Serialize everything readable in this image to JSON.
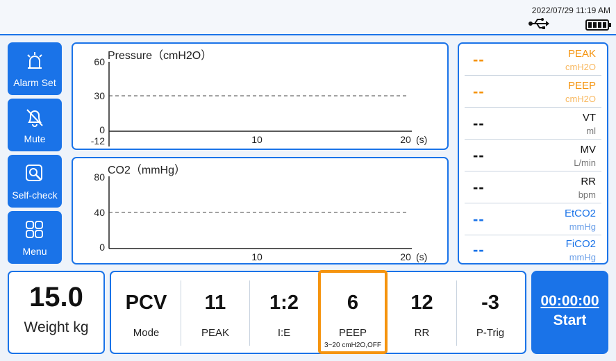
{
  "status": {
    "datetime": "2022/07/29 11:19  AM",
    "icons": [
      "usb-icon",
      "battery-icon"
    ]
  },
  "sidebar": {
    "items": [
      {
        "label": "Alarm Set",
        "icon": "alarm-icon"
      },
      {
        "label": "Mute",
        "icon": "mute-bell-icon"
      },
      {
        "label": "Self-check",
        "icon": "self-check-icon"
      },
      {
        "label": "Menu",
        "icon": "menu-grid-icon"
      }
    ]
  },
  "graphs": {
    "pressure": {
      "title": "Pressure（cmH2O）",
      "y_ticks": [
        "60",
        "30",
        "0",
        "-12"
      ],
      "x_ticks": [
        "10",
        "20"
      ],
      "x_unit": "(s)"
    },
    "co2": {
      "title": "CO2（mmHg）",
      "y_ticks": [
        "80",
        "40",
        "0"
      ],
      "x_ticks": [
        "10",
        "20"
      ],
      "x_unit": "(s)"
    }
  },
  "monitor": {
    "rows": [
      {
        "value": "--",
        "name": "PEAK",
        "unit": "cmH2O",
        "color": "#f5940f",
        "unit_color": "#f8b860"
      },
      {
        "value": "--",
        "name": "PEEP",
        "unit": "cmH2O",
        "color": "#f5940f",
        "unit_color": "#f8b860"
      },
      {
        "value": "--",
        "name": "VT",
        "unit": "ml",
        "color": "#111111",
        "unit_color": "#777777"
      },
      {
        "value": "--",
        "name": "MV",
        "unit": "L/min",
        "color": "#111111",
        "unit_color": "#777777"
      },
      {
        "value": "--",
        "name": "RR",
        "unit": "bpm",
        "color": "#111111",
        "unit_color": "#777777"
      },
      {
        "value": "--",
        "name": "EtCO2",
        "unit": "mmHg",
        "color": "#1a73e8",
        "unit_color": "#6a9fe8"
      },
      {
        "value": "--",
        "name": "FiCO2",
        "unit": "mmHg",
        "color": "#1a73e8",
        "unit_color": "#6a9fe8"
      }
    ]
  },
  "weight": {
    "value": "15.0",
    "label": "Weight kg"
  },
  "settings": [
    {
      "value": "PCV",
      "label": "Mode"
    },
    {
      "value": "11",
      "label": "PEAK"
    },
    {
      "value": "1:2",
      "label": "I:E"
    },
    {
      "value": "6",
      "label": "PEEP",
      "range": "3~20 cmH2O,OFF",
      "selected": true
    },
    {
      "value": "12",
      "label": "RR"
    },
    {
      "value": "-3",
      "label": "P-Trig"
    }
  ],
  "start": {
    "time": "00:00:00",
    "label": "Start"
  },
  "colors": {
    "accent": "#1a73e8",
    "highlight": "#f5940f"
  }
}
